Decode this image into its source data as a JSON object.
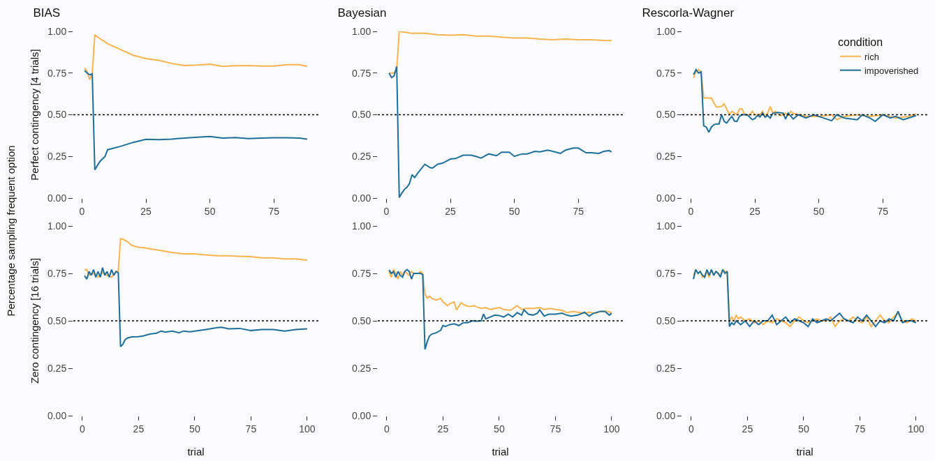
{
  "chart_data": [
    {
      "type": "line",
      "title": "BIAS",
      "ylabel": "Perfect contingency [4 trials]",
      "annotations": [
        "Percentage sampling frequent option"
      ],
      "xlim": [
        -3.4,
        92.4
      ],
      "xticks": [
        0,
        25,
        50,
        75
      ],
      "ylim": [
        0,
        1
      ],
      "yticks": [
        {
          "value": 0,
          "label": "0.00"
        },
        {
          "value": 0.25,
          "label": "0.25"
        },
        {
          "value": 0.5,
          "label": "0.50"
        },
        {
          "value": 0.75,
          "label": "0.75"
        },
        {
          "value": 1,
          "label": "1.00"
        }
      ],
      "ref_lines": [
        {
          "axis": "y",
          "value": 0.5,
          "line_style": "dotted",
          "color": "#000000"
        }
      ],
      "series": [
        {
          "color": "#f9b450",
          "x": [
            1,
            2,
            3,
            4,
            5,
            10,
            15,
            20,
            25,
            30,
            35,
            40,
            45,
            50,
            55,
            60,
            65,
            70,
            75,
            80,
            85,
            88
          ],
          "values": [
            0.78,
            0.76,
            0.71,
            0.75,
            0.977,
            0.926,
            0.892,
            0.857,
            0.837,
            0.826,
            0.808,
            0.795,
            0.798,
            0.803,
            0.79,
            0.794,
            0.795,
            0.792,
            0.792,
            0.8,
            0.8,
            0.79
          ]
        },
        {
          "color": "#1f6e9c",
          "x": [
            1,
            2,
            3,
            4,
            5,
            7,
            9,
            10,
            15,
            20,
            25,
            30,
            35,
            40,
            45,
            50,
            55,
            60,
            65,
            70,
            75,
            80,
            85,
            88
          ],
          "values": [
            0.765,
            0.75,
            0.74,
            0.745,
            0.17,
            0.22,
            0.25,
            0.29,
            0.31,
            0.334,
            0.352,
            0.35,
            0.354,
            0.36,
            0.365,
            0.369,
            0.36,
            0.363,
            0.357,
            0.36,
            0.362,
            0.362,
            0.36,
            0.354
          ]
        }
      ]
    },
    {
      "type": "line",
      "title": "Bayesian",
      "xlim": [
        -3.4,
        92.4
      ],
      "xticks": [
        0,
        25,
        50,
        75
      ],
      "ylim": [
        0,
        1
      ],
      "yticks": [
        {
          "value": 0,
          "label": "0.00"
        },
        {
          "value": 0.25,
          "label": "0.25"
        },
        {
          "value": 0.5,
          "label": "0.50"
        },
        {
          "value": 0.75,
          "label": "0.75"
        },
        {
          "value": 1,
          "label": "1.00"
        }
      ],
      "ref_lines": [
        {
          "axis": "y",
          "value": 0.5,
          "line_style": "dotted",
          "color": "#000000"
        }
      ],
      "series": [
        {
          "color": "#f9b450",
          "x": [
            1,
            2,
            3,
            4,
            5,
            10,
            15,
            20,
            25,
            30,
            35,
            40,
            45,
            50,
            55,
            60,
            65,
            70,
            75,
            80,
            85,
            88
          ],
          "values": [
            0.75,
            0.75,
            0.75,
            0.77,
            1.0,
            0.988,
            0.988,
            0.98,
            0.977,
            0.98,
            0.972,
            0.972,
            0.965,
            0.96,
            0.96,
            0.954,
            0.95,
            0.954,
            0.95,
            0.95,
            0.946,
            0.945
          ]
        },
        {
          "color": "#1f6e9c",
          "x": [
            1,
            2,
            3,
            4,
            5,
            6,
            7,
            8,
            9,
            10,
            11,
            12,
            13,
            15,
            17,
            18,
            20,
            22,
            25,
            27,
            30,
            33,
            35,
            37,
            40,
            43,
            45,
            48,
            50,
            53,
            55,
            58,
            60,
            63,
            65,
            68,
            70,
            73,
            75,
            78,
            80,
            83,
            85,
            87,
            88
          ],
          "values": [
            0.75,
            0.723,
            0.734,
            0.79,
            0.003,
            0.03,
            0.052,
            0.065,
            0.088,
            0.14,
            0.123,
            0.145,
            0.165,
            0.203,
            0.183,
            0.18,
            0.203,
            0.21,
            0.234,
            0.237,
            0.257,
            0.257,
            0.25,
            0.24,
            0.265,
            0.254,
            0.275,
            0.275,
            0.25,
            0.265,
            0.265,
            0.28,
            0.277,
            0.288,
            0.28,
            0.268,
            0.288,
            0.3,
            0.3,
            0.272,
            0.272,
            0.268,
            0.28,
            0.285,
            0.277
          ]
        }
      ]
    },
    {
      "type": "line",
      "title": "Rescorla-Wagner",
      "legend": "top right",
      "legend_title": "condition",
      "xlim": [
        -3.4,
        92.4
      ],
      "xticks": [
        0,
        25,
        50,
        75
      ],
      "ylim": [
        0,
        1
      ],
      "yticks": [
        {
          "value": 0,
          "label": "0.00"
        },
        {
          "value": 0.25,
          "label": "0.25"
        },
        {
          "value": 0.5,
          "label": "0.50"
        },
        {
          "value": 0.75,
          "label": "0.75"
        },
        {
          "value": 1,
          "label": "1.00"
        }
      ],
      "ref_lines": [
        {
          "axis": "y",
          "value": 0.5,
          "line_style": "dotted",
          "color": "#000000"
        }
      ],
      "series": [
        {
          "name": "rich",
          "color": "#f9b450",
          "x": [
            1,
            2,
            3,
            4,
            5,
            7,
            8,
            9,
            10,
            12,
            13,
            14,
            15,
            16,
            17,
            18,
            19,
            20,
            21,
            23,
            24,
            25,
            27,
            28,
            29,
            30,
            31,
            32,
            33,
            35,
            37,
            38,
            39,
            40,
            45,
            50,
            55,
            57,
            60,
            65,
            70,
            75,
            80,
            85,
            88
          ],
          "values": [
            0.72,
            0.76,
            0.77,
            0.757,
            0.6,
            0.6,
            0.6,
            0.57,
            0.545,
            0.55,
            0.565,
            0.534,
            0.503,
            0.52,
            0.51,
            0.5,
            0.534,
            0.534,
            0.5,
            0.5,
            0.52,
            0.5,
            0.5,
            0.52,
            0.487,
            0.51,
            0.55,
            0.51,
            0.52,
            0.495,
            0.51,
            0.495,
            0.52,
            0.508,
            0.49,
            0.49,
            0.5,
            0.47,
            0.49,
            0.5,
            0.49,
            0.5,
            0.48,
            0.49,
            0.505
          ]
        },
        {
          "name": "impoverished",
          "color": "#1f6e9c",
          "x": [
            1,
            2,
            3,
            4,
            5,
            6,
            7,
            8,
            9,
            10,
            11,
            12,
            13,
            14,
            15,
            16,
            17,
            18,
            19,
            20,
            22,
            24,
            25,
            26,
            27,
            28,
            29,
            30,
            31,
            32,
            34,
            36,
            37,
            38,
            40,
            42,
            45,
            48,
            50,
            55,
            57,
            60,
            65,
            67,
            70,
            72,
            75,
            78,
            80,
            83,
            85,
            88
          ],
          "values": [
            0.74,
            0.77,
            0.75,
            0.757,
            0.434,
            0.426,
            0.395,
            0.426,
            0.44,
            0.445,
            0.445,
            0.5,
            0.46,
            0.45,
            0.472,
            0.49,
            0.462,
            0.46,
            0.492,
            0.5,
            0.5,
            0.47,
            0.477,
            0.495,
            0.487,
            0.51,
            0.485,
            0.495,
            0.48,
            0.508,
            0.514,
            0.51,
            0.474,
            0.51,
            0.474,
            0.5,
            0.48,
            0.5,
            0.49,
            0.464,
            0.5,
            0.48,
            0.47,
            0.5,
            0.48,
            0.46,
            0.5,
            0.48,
            0.49,
            0.47,
            0.48,
            0.495
          ]
        }
      ]
    },
    {
      "type": "line",
      "xlabel": "trial",
      "ylabel": "Zero contingency [16 trials]",
      "xlim": [
        -4,
        105
      ],
      "xticks": [
        0,
        25,
        50,
        75,
        100
      ],
      "ylim": [
        0,
        1
      ],
      "yticks": [
        {
          "value": 0,
          "label": "0.00"
        },
        {
          "value": 0.25,
          "label": "0.25"
        },
        {
          "value": 0.5,
          "label": "0.50"
        },
        {
          "value": 0.75,
          "label": "0.75"
        },
        {
          "value": 1,
          "label": "1.00"
        }
      ],
      "ref_lines": [
        {
          "axis": "y",
          "value": 0.5,
          "line_style": "dotted",
          "color": "#000000"
        }
      ],
      "series": [
        {
          "color": "#f9b450",
          "x": [
            1,
            2,
            3,
            5,
            7,
            9,
            11,
            13,
            15,
            16,
            17,
            18,
            20,
            22,
            25,
            28,
            30,
            35,
            40,
            45,
            50,
            55,
            60,
            65,
            70,
            75,
            80,
            85,
            90,
            95,
            100
          ],
          "values": [
            0.768,
            0.77,
            0.74,
            0.75,
            0.73,
            0.755,
            0.74,
            0.73,
            0.76,
            0.76,
            0.933,
            0.93,
            0.918,
            0.898,
            0.888,
            0.884,
            0.88,
            0.87,
            0.86,
            0.853,
            0.853,
            0.847,
            0.843,
            0.843,
            0.84,
            0.838,
            0.832,
            0.832,
            0.826,
            0.826,
            0.82
          ]
        },
        {
          "color": "#1f6e9c",
          "x": [
            1,
            2,
            3,
            4,
            5,
            6,
            7,
            8,
            9,
            10,
            11,
            12,
            13,
            14,
            15,
            16,
            17,
            18,
            19,
            20,
            22,
            25,
            27,
            30,
            33,
            35,
            37,
            40,
            43,
            45,
            48,
            50,
            55,
            60,
            62,
            65,
            70,
            75,
            80,
            85,
            90,
            95,
            100
          ],
          "values": [
            0.738,
            0.72,
            0.76,
            0.74,
            0.77,
            0.73,
            0.76,
            0.73,
            0.78,
            0.74,
            0.76,
            0.73,
            0.77,
            0.74,
            0.76,
            0.753,
            0.364,
            0.375,
            0.4,
            0.409,
            0.415,
            0.416,
            0.42,
            0.43,
            0.435,
            0.446,
            0.44,
            0.446,
            0.437,
            0.446,
            0.442,
            0.446,
            0.454,
            0.464,
            0.466,
            0.458,
            0.46,
            0.449,
            0.454,
            0.454,
            0.446,
            0.454,
            0.458
          ]
        }
      ]
    },
    {
      "type": "line",
      "xlabel": "trial",
      "xlim": [
        -4,
        105
      ],
      "xticks": [
        0,
        25,
        50,
        75,
        100
      ],
      "ylim": [
        0,
        1
      ],
      "yticks": [
        {
          "value": 0,
          "label": "0.00"
        },
        {
          "value": 0.25,
          "label": "0.25"
        },
        {
          "value": 0.5,
          "label": "0.50"
        },
        {
          "value": 0.75,
          "label": "0.75"
        },
        {
          "value": 1,
          "label": "1.00"
        }
      ],
      "ref_lines": [
        {
          "axis": "y",
          "value": 0.5,
          "line_style": "dotted",
          "color": "#000000"
        }
      ],
      "series": [
        {
          "color": "#f9b450",
          "x": [
            1,
            2,
            3,
            4,
            5,
            6,
            7,
            8,
            9,
            10,
            11,
            12,
            13,
            14,
            15,
            16,
            17,
            18,
            19,
            20,
            22,
            24,
            25,
            27,
            28,
            30,
            31,
            33,
            35,
            37,
            39,
            40,
            42,
            44,
            46,
            48,
            50,
            52,
            55,
            58,
            60,
            62,
            65,
            68,
            70,
            73,
            75,
            78,
            80,
            83,
            85,
            88,
            90,
            93,
            95,
            98,
            100
          ],
          "values": [
            0.76,
            0.73,
            0.77,
            0.75,
            0.72,
            0.76,
            0.74,
            0.76,
            0.75,
            0.74,
            0.76,
            0.75,
            0.75,
            0.75,
            0.76,
            0.75,
            0.64,
            0.62,
            0.63,
            0.618,
            0.61,
            0.618,
            0.6,
            0.58,
            0.59,
            0.6,
            0.557,
            0.595,
            0.58,
            0.575,
            0.58,
            0.573,
            0.565,
            0.57,
            0.56,
            0.565,
            0.57,
            0.56,
            0.555,
            0.58,
            0.56,
            0.565,
            0.565,
            0.57,
            0.56,
            0.565,
            0.56,
            0.555,
            0.543,
            0.55,
            0.545,
            0.54,
            0.545,
            0.54,
            0.55,
            0.55,
            0.543
          ]
        },
        {
          "color": "#1f6e9c",
          "x": [
            1,
            2,
            3,
            4,
            5,
            6,
            7,
            8,
            9,
            10,
            11,
            12,
            13,
            14,
            15,
            16,
            17,
            18,
            19,
            20,
            22,
            24,
            25,
            26,
            28,
            30,
            32,
            34,
            36,
            38,
            40,
            42,
            43,
            44,
            46,
            48,
            50,
            52,
            54,
            56,
            58,
            60,
            61,
            63,
            65,
            67,
            68,
            70,
            72,
            75,
            78,
            80,
            82,
            85,
            88,
            90,
            92,
            95,
            97,
            99,
            100
          ],
          "values": [
            0.768,
            0.75,
            0.76,
            0.73,
            0.76,
            0.74,
            0.73,
            0.76,
            0.77,
            0.76,
            0.72,
            0.75,
            0.75,
            0.75,
            0.75,
            0.743,
            0.349,
            0.39,
            0.42,
            0.43,
            0.437,
            0.45,
            0.476,
            0.47,
            0.48,
            0.484,
            0.475,
            0.49,
            0.49,
            0.5,
            0.498,
            0.5,
            0.536,
            0.51,
            0.52,
            0.53,
            0.528,
            0.52,
            0.535,
            0.52,
            0.543,
            0.53,
            0.558,
            0.535,
            0.53,
            0.54,
            0.558,
            0.525,
            0.535,
            0.535,
            0.54,
            0.53,
            0.525,
            0.53,
            0.545,
            0.525,
            0.54,
            0.55,
            0.55,
            0.53,
            0.54
          ]
        }
      ]
    },
    {
      "type": "line",
      "xlabel": "trial",
      "xlim": [
        -4,
        105
      ],
      "xticks": [
        0,
        25,
        50,
        75,
        100
      ],
      "ylim": [
        0,
        1
      ],
      "yticks": [
        {
          "value": 0,
          "label": "0.00"
        },
        {
          "value": 0.25,
          "label": "0.25"
        },
        {
          "value": 0.5,
          "label": "0.50"
        },
        {
          "value": 0.75,
          "label": "0.75"
        },
        {
          "value": 1,
          "label": "1.00"
        }
      ],
      "ref_lines": [
        {
          "axis": "y",
          "value": 0.5,
          "line_style": "dotted",
          "color": "#000000"
        }
      ],
      "series": [
        {
          "color": "#f9b450",
          "x": [
            1,
            2,
            3,
            4,
            5,
            6,
            7,
            8,
            9,
            10,
            11,
            12,
            13,
            14,
            15,
            16,
            17,
            18,
            19,
            20,
            21,
            22,
            24,
            26,
            28,
            30,
            32,
            34,
            36,
            38,
            40,
            42,
            44,
            46,
            48,
            50,
            52,
            54,
            56,
            58,
            60,
            62,
            64,
            66,
            68,
            70,
            72,
            74,
            76,
            78,
            80,
            82,
            84,
            86,
            88,
            90,
            92,
            94,
            96,
            98,
            100
          ],
          "values": [
            0.74,
            0.77,
            0.75,
            0.76,
            0.73,
            0.74,
            0.76,
            0.73,
            0.77,
            0.74,
            0.76,
            0.75,
            0.74,
            0.77,
            0.76,
            0.76,
            0.5,
            0.52,
            0.5,
            0.53,
            0.51,
            0.52,
            0.5,
            0.51,
            0.49,
            0.5,
            0.48,
            0.5,
            0.49,
            0.51,
            0.5,
            0.49,
            0.47,
            0.5,
            0.52,
            0.5,
            0.49,
            0.5,
            0.51,
            0.5,
            0.5,
            0.52,
            0.47,
            0.5,
            0.51,
            0.5,
            0.52,
            0.5,
            0.49,
            0.52,
            0.47,
            0.5,
            0.53,
            0.5,
            0.49,
            0.52,
            0.54,
            0.5,
            0.49,
            0.51,
            0.5
          ]
        },
        {
          "color": "#1f6e9c",
          "x": [
            1,
            2,
            3,
            4,
            5,
            6,
            7,
            8,
            9,
            10,
            11,
            12,
            13,
            14,
            15,
            16,
            17,
            18,
            19,
            20,
            22,
            24,
            26,
            28,
            30,
            32,
            34,
            36,
            38,
            40,
            42,
            44,
            46,
            48,
            50,
            52,
            54,
            56,
            58,
            60,
            62,
            64,
            66,
            68,
            70,
            72,
            74,
            76,
            78,
            80,
            82,
            84,
            86,
            88,
            90,
            92,
            94,
            96,
            98,
            100
          ],
          "values": [
            0.72,
            0.77,
            0.75,
            0.76,
            0.74,
            0.73,
            0.77,
            0.74,
            0.77,
            0.74,
            0.76,
            0.75,
            0.73,
            0.77,
            0.75,
            0.76,
            0.47,
            0.49,
            0.48,
            0.5,
            0.48,
            0.5,
            0.47,
            0.5,
            0.48,
            0.5,
            0.5,
            0.53,
            0.48,
            0.5,
            0.52,
            0.49,
            0.51,
            0.5,
            0.49,
            0.47,
            0.51,
            0.49,
            0.5,
            0.51,
            0.5,
            0.52,
            0.54,
            0.51,
            0.5,
            0.49,
            0.52,
            0.5,
            0.53,
            0.5,
            0.47,
            0.5,
            0.49,
            0.51,
            0.5,
            0.55,
            0.49,
            0.5,
            0.5,
            0.49
          ]
        }
      ]
    }
  ]
}
